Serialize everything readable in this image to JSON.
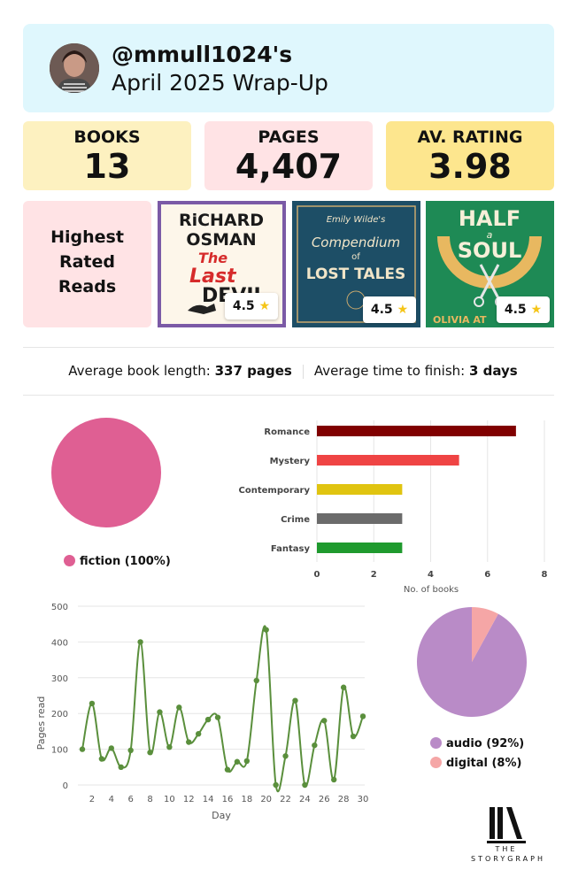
{
  "header": {
    "handle": "@mmull1024's",
    "period": "April 2025 Wrap-Up"
  },
  "stats": [
    {
      "label": "BOOKS",
      "value": "13",
      "color": "#fdf1c0"
    },
    {
      "label": "PAGES",
      "value": "4,407",
      "color": "#ffe3e5"
    },
    {
      "label": "AV. RATING",
      "value": "3.98",
      "color": "#fde68e"
    }
  ],
  "highest_rated": {
    "label_lines": [
      "Highest",
      "Rated",
      "Reads"
    ],
    "books": [
      {
        "author": "RICHARD OSMAN",
        "title": "The Last Devil To Die",
        "rating": "4.5"
      },
      {
        "author": "Emily Wilde's",
        "title": "Compendium of Lost Tales",
        "rating": "4.5"
      },
      {
        "author": "OLIVIA ATWATER",
        "title": "Half a Soul",
        "rating": "4.5"
      }
    ]
  },
  "averages": {
    "length_label": "Average book length: ",
    "length_value": "337 pages",
    "time_label": "Average time to finish: ",
    "time_value": "3 days"
  },
  "chart_data": [
    {
      "type": "pie",
      "labels": [
        "fiction"
      ],
      "values": [
        100
      ],
      "legend": [
        "fiction (100%)"
      ],
      "colors": [
        "#df5f93"
      ],
      "legend_placement": "bottom"
    },
    {
      "type": "bar",
      "orientation": "horizontal",
      "categories": [
        "Romance",
        "Mystery",
        "Contemporary",
        "Crime",
        "Fantasy"
      ],
      "values": [
        7,
        5,
        3,
        3,
        3
      ],
      "colors": [
        "#800000",
        "#ef4444",
        "#e0c410",
        "#6b6b6b",
        "#1f9a2e"
      ],
      "xlabel": "No. of books",
      "xlim": [
        0,
        8
      ],
      "xticks": [
        0,
        2,
        4,
        6,
        8
      ],
      "grid": true
    },
    {
      "type": "line",
      "x": [
        1,
        2,
        3,
        4,
        5,
        6,
        7,
        8,
        9,
        10,
        11,
        12,
        13,
        14,
        15,
        16,
        17,
        18,
        19,
        20,
        21,
        22,
        23,
        24,
        25,
        26,
        27,
        28,
        29,
        30
      ],
      "values": [
        100,
        228,
        73,
        103,
        50,
        97,
        400,
        91,
        204,
        106,
        217,
        120,
        143,
        183,
        189,
        43,
        65,
        67,
        292,
        434,
        0,
        81,
        236,
        0,
        111,
        180,
        15,
        273,
        136,
        192
      ],
      "color": "#5a8f3c",
      "xlabel": "Day",
      "ylabel": "Pages read",
      "ylim": [
        0,
        500
      ],
      "yticks": [
        0,
        100,
        200,
        300,
        400,
        500
      ],
      "xticks": [
        2,
        4,
        6,
        8,
        10,
        12,
        14,
        16,
        18,
        20,
        22,
        24,
        26,
        28,
        30
      ],
      "grid": true
    },
    {
      "type": "pie",
      "labels": [
        "audio",
        "digital"
      ],
      "values": [
        92,
        8
      ],
      "legend": [
        "audio (92%)",
        "digital (8%)"
      ],
      "colors": [
        "#b98bc7",
        "#f5a6a6"
      ],
      "legend_placement": "bottom"
    }
  ],
  "logo": {
    "line1": "THE",
    "line2": "STORYGRAPH"
  }
}
